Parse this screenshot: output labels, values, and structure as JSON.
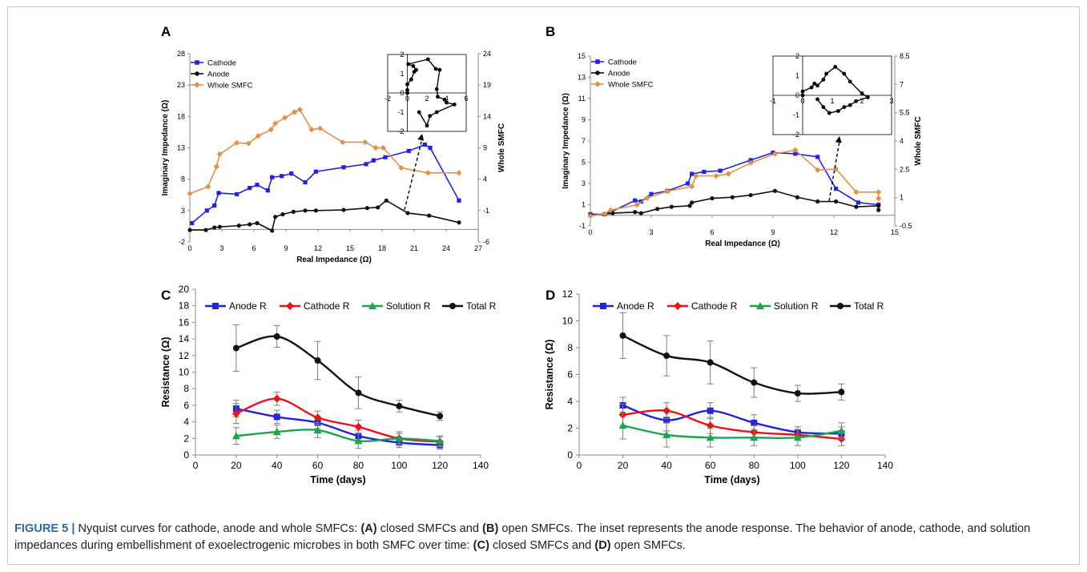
{
  "caption": {
    "label": "FIGURE 5 |",
    "p1": " Nyquist curves for cathode, anode and whole SMFCs: ",
    "a": "(A)",
    "p2": " closed SMFCs and ",
    "b": "(B)",
    "p3": " open SMFCs. The inset represents the anode response. The behavior of anode, cathode, and solution impedances during embellishment of exoelectrogenic microbes in both SMFC over time: ",
    "c": "(C)",
    "p4": " closed SMFCs and ",
    "d": "(D)",
    "p5": " open SMFCs."
  },
  "colors": {
    "cathode": "#2323d9",
    "anode": "#111111",
    "whole": "#e0914a",
    "anodeR": "#2323d9",
    "cathodeR": "#e8141a",
    "solutionR": "#1aa64a",
    "totalR": "#111111",
    "errorbar": "#7f7f7f"
  },
  "chart_data": [
    {
      "panel": "A",
      "type": "line",
      "xlabel": "Real Impedance (Ω)",
      "ylabel": "Imaginary Impedance (Ω)",
      "y2label": "Whole SMFC",
      "xlim": [
        0,
        27
      ],
      "ylim": [
        -2,
        28
      ],
      "y2lim": [
        -6,
        24
      ],
      "xticks": [
        0,
        3,
        6,
        9,
        12,
        15,
        18,
        21,
        24,
        27
      ],
      "yticks": [
        -2,
        3,
        8,
        13,
        18,
        23,
        28
      ],
      "y2ticks": [
        -6,
        -1,
        4,
        9,
        14,
        19,
        24
      ],
      "series": [
        {
          "name": "Cathode",
          "axis": "left",
          "marker": "square",
          "colorKey": "cathode",
          "x": [
            0.2,
            1.6,
            2.3,
            2.7,
            4.4,
            5.6,
            6.3,
            7.3,
            7.7,
            8.6,
            9.5,
            10.8,
            11.8,
            14.4,
            16.5,
            17.2,
            18.3,
            20.5,
            22.0,
            22.5,
            25.2
          ],
          "y": [
            1.0,
            3.0,
            3.8,
            5.8,
            5.6,
            6.6,
            7.1,
            6.2,
            8.3,
            8.5,
            8.9,
            7.5,
            9.2,
            9.9,
            10.4,
            11.0,
            11.5,
            12.5,
            13.5,
            13.0,
            4.6
          ]
        },
        {
          "name": "Anode",
          "axis": "left",
          "marker": "circle",
          "colorKey": "anode",
          "x": [
            0.0,
            1.5,
            2.3,
            2.8,
            4.6,
            5.6,
            6.3,
            7.7,
            8.0,
            8.7,
            9.7,
            10.8,
            11.8,
            14.4,
            16.6,
            17.6,
            18.4,
            20.4,
            22.4,
            25.2
          ],
          "y": [
            -0.1,
            -0.1,
            0.3,
            0.4,
            0.6,
            0.8,
            1.0,
            -0.2,
            2.0,
            2.4,
            2.8,
            3.0,
            3.0,
            3.1,
            3.4,
            3.5,
            4.6,
            2.6,
            2.2,
            1.1
          ]
        },
        {
          "name": "Whole SMFC",
          "axis": "right",
          "marker": "diamond",
          "colorKey": "whole",
          "x": [
            0.0,
            1.7,
            2.5,
            2.8,
            4.4,
            5.5,
            6.4,
            7.6,
            8.0,
            8.9,
            9.8,
            10.3,
            11.4,
            12.2,
            14.3,
            16.4,
            17.4,
            18.1,
            19.8,
            22.3,
            25.2
          ],
          "y": [
            1.7,
            2.8,
            6.0,
            8.0,
            9.8,
            9.7,
            10.9,
            11.9,
            12.9,
            13.8,
            14.7,
            15.1,
            11.9,
            12.1,
            9.9,
            9.9,
            9.0,
            9.0,
            5.8,
            5.0,
            5.0
          ]
        }
      ],
      "inset": {
        "xlim": [
          -2,
          6
        ],
        "ylim": [
          -2,
          2
        ],
        "xticks": [
          -2,
          0,
          2,
          4,
          6
        ],
        "yticks": [
          -2,
          -1,
          0,
          1,
          2
        ],
        "x": [
          0.0,
          0.0,
          0.0,
          0.4,
          0.7,
          0.9,
          0.6,
          0.1,
          2.1,
          2.9,
          3.3,
          3.0,
          3.1,
          3.8,
          4.0,
          4.8,
          3.0,
          2.3,
          2.0,
          1.2
        ],
        "y": [
          0.0,
          0.15,
          0.45,
          0.7,
          1.1,
          1.2,
          1.4,
          1.5,
          1.75,
          1.25,
          1.2,
          0.2,
          -0.2,
          -0.35,
          -0.5,
          -0.6,
          -1.0,
          -1.2,
          -1.7,
          -1.0
        ]
      }
    },
    {
      "panel": "B",
      "type": "line",
      "xlabel": "Real Impedance (Ω)",
      "ylabel": "Imaginary Impedance (Ω)",
      "y2label": "Whole SMFC",
      "xlim": [
        0,
        15
      ],
      "ylim": [
        -1,
        15
      ],
      "y2lim": [
        -0.5,
        8.5
      ],
      "xticks": [
        0,
        3,
        6,
        9,
        12,
        15
      ],
      "yticks": [
        -1,
        1,
        3,
        5,
        7,
        9,
        11,
        13,
        15
      ],
      "y2ticks": [
        -0.5,
        1,
        2.5,
        4,
        5.5,
        7,
        8.5
      ],
      "series": [
        {
          "name": "Cathode",
          "axis": "left",
          "marker": "square",
          "colorKey": "cathode",
          "x": [
            0.0,
            0.7,
            1.0,
            2.2,
            2.5,
            3.0,
            3.8,
            4.8,
            5.0,
            5.6,
            6.4,
            7.9,
            9.0,
            10.1,
            11.2,
            12.1,
            13.2,
            14.2
          ],
          "y": [
            0.1,
            0.1,
            0.3,
            1.4,
            1.3,
            2.0,
            2.3,
            3.0,
            3.9,
            4.1,
            4.2,
            5.2,
            5.9,
            5.8,
            5.5,
            2.5,
            1.2,
            1.0
          ]
        },
        {
          "name": "Anode",
          "axis": "left",
          "marker": "circle",
          "colorKey": "anode",
          "x": [
            0.0,
            0.7,
            1.1,
            2.2,
            2.5,
            3.3,
            4.0,
            4.9,
            5.0,
            6.0,
            7.0,
            7.9,
            9.1,
            10.2,
            11.2,
            12.1,
            13.1,
            14.2,
            14.2
          ],
          "y": [
            0.0,
            0.1,
            0.2,
            0.3,
            0.2,
            0.6,
            0.8,
            0.9,
            1.2,
            1.6,
            1.7,
            1.9,
            2.3,
            1.7,
            1.3,
            1.3,
            0.8,
            0.9,
            0.5
          ]
        },
        {
          "name": "Whole SMFC",
          "axis": "right",
          "marker": "diamond",
          "colorKey": "whole",
          "x": [
            0.0,
            0.7,
            1.0,
            2.3,
            2.8,
            3.8,
            5.0,
            5.2,
            6.2,
            6.8,
            7.9,
            9.1,
            10.1,
            11.2,
            12.1,
            13.1,
            14.2,
            14.2
          ],
          "y": [
            0.03,
            0.14,
            0.34,
            0.62,
            0.98,
            1.34,
            1.59,
            2.15,
            2.15,
            2.26,
            2.84,
            3.32,
            3.52,
            2.46,
            2.52,
            1.29,
            1.29,
            0.96
          ]
        }
      ],
      "inset": {
        "xlim": [
          -1,
          3
        ],
        "ylim": [
          -2,
          2
        ],
        "xticks": [
          -1,
          0,
          1,
          2,
          3
        ],
        "yticks": [
          -2,
          -1,
          0,
          1,
          2
        ],
        "x": [
          0.0,
          0.0,
          0.3,
          0.4,
          0.5,
          0.7,
          0.8,
          1.1,
          1.4,
          1.6,
          2.0,
          2.2,
          1.8,
          1.6,
          1.4,
          1.2,
          0.9,
          0.7,
          0.5
        ],
        "y": [
          0.0,
          0.2,
          0.4,
          0.6,
          0.5,
          0.8,
          1.1,
          1.45,
          1.1,
          0.7,
          0.1,
          -0.1,
          -0.3,
          -0.5,
          -0.6,
          -0.8,
          -0.9,
          -0.6,
          -0.2
        ]
      }
    },
    {
      "panel": "C",
      "type": "line",
      "xlabel": "Time (days)",
      "ylabel": "Resistance (Ω)",
      "xlim": [
        0,
        140
      ],
      "ylim": [
        0,
        20
      ],
      "xticks": [
        0,
        20,
        40,
        60,
        80,
        100,
        120,
        140
      ],
      "yticks": [
        0,
        2,
        4,
        6,
        8,
        10,
        12,
        14,
        16,
        18,
        20
      ],
      "x": [
        20,
        40,
        60,
        80,
        100,
        120
      ],
      "series": [
        {
          "name": "Anode R",
          "marker": "square",
          "colorKey": "anodeR",
          "values": [
            5.6,
            4.6,
            3.9,
            2.3,
            1.5,
            1.2
          ],
          "err": [
            1.0,
            0.8,
            0.7,
            0.7,
            0.6,
            0.5
          ]
        },
        {
          "name": "Cathode R",
          "marker": "diamond",
          "colorKey": "cathodeR",
          "values": [
            5.0,
            6.8,
            4.5,
            3.4,
            2.0,
            1.6
          ],
          "err": [
            1.2,
            0.8,
            0.8,
            0.8,
            0.6,
            0.6
          ]
        },
        {
          "name": "Solution R",
          "marker": "triangle",
          "colorKey": "solutionR",
          "values": [
            2.3,
            2.8,
            3.0,
            1.7,
            2.0,
            1.7
          ],
          "err": [
            1.0,
            0.8,
            0.9,
            0.9,
            0.8,
            0.6
          ]
        },
        {
          "name": "Total R",
          "marker": "circle",
          "colorKey": "totalR",
          "values": [
            12.9,
            14.3,
            11.4,
            7.5,
            5.9,
            4.7
          ],
          "err": [
            2.8,
            1.3,
            2.3,
            1.9,
            0.7,
            0.5
          ]
        }
      ]
    },
    {
      "panel": "D",
      "type": "line",
      "xlabel": "Time (days)",
      "ylabel": "Resistance (Ω)",
      "xlim": [
        0,
        140
      ],
      "ylim": [
        0,
        12
      ],
      "xticks": [
        0,
        20,
        40,
        60,
        80,
        100,
        120,
        140
      ],
      "yticks": [
        0,
        2,
        4,
        6,
        8,
        10,
        12
      ],
      "x": [
        20,
        40,
        60,
        80,
        100,
        120
      ],
      "series": [
        {
          "name": "Anode R",
          "marker": "square",
          "colorKey": "anodeR",
          "values": [
            3.7,
            2.6,
            3.3,
            2.4,
            1.7,
            1.6
          ],
          "err": [
            0.6,
            0.8,
            0.6,
            0.6,
            0.4,
            0.5
          ]
        },
        {
          "name": "Cathode R",
          "marker": "diamond",
          "colorKey": "cathodeR",
          "values": [
            3.0,
            3.3,
            2.2,
            1.7,
            1.5,
            1.2
          ],
          "err": [
            0.8,
            0.6,
            0.6,
            0.5,
            0.4,
            0.5
          ]
        },
        {
          "name": "Solution R",
          "marker": "triangle",
          "colorKey": "solutionR",
          "values": [
            2.2,
            1.5,
            1.3,
            1.3,
            1.3,
            1.8
          ],
          "err": [
            1.0,
            0.9,
            0.7,
            0.6,
            0.6,
            0.6
          ]
        },
        {
          "name": "Total R",
          "marker": "circle",
          "colorKey": "totalR",
          "values": [
            8.9,
            7.4,
            6.9,
            5.4,
            4.6,
            4.7
          ],
          "err": [
            1.7,
            1.5,
            1.6,
            1.1,
            0.6,
            0.6
          ]
        }
      ]
    }
  ]
}
